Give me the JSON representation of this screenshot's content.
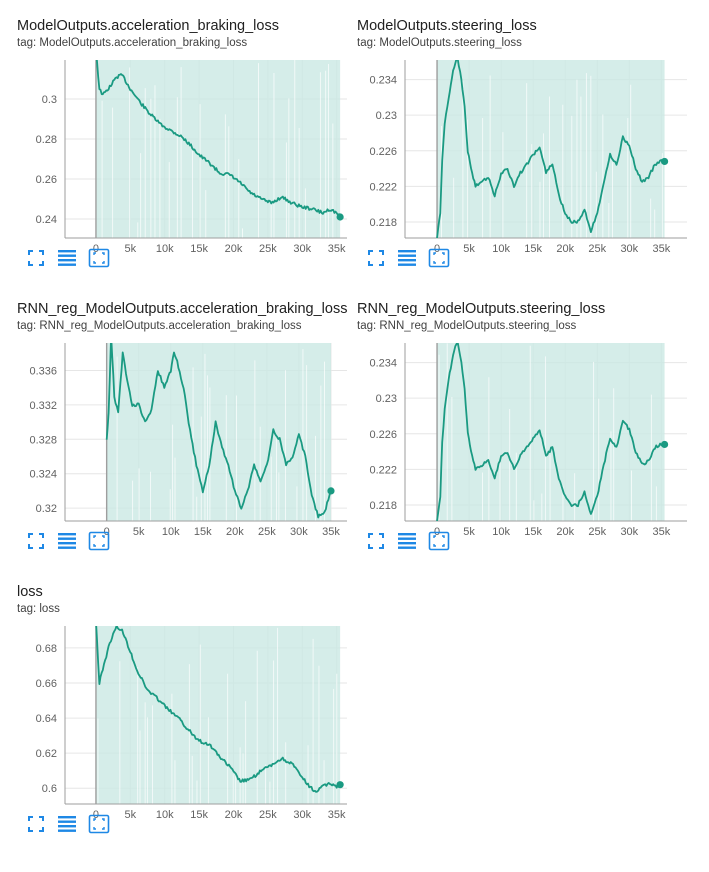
{
  "colors": {
    "line": "#1a9a82",
    "band": "#cbe9e3",
    "grid": "#e6e6e6",
    "axis": "#9e9e9e",
    "icon": "#1e88e5"
  },
  "icons": [
    "fullscreen-icon",
    "data-table-icon",
    "fit-domain-icon"
  ],
  "charts": [
    {
      "title": "ModelOutputs.acceleration_braking_loss",
      "tag": "tag: ModelOutputs.acceleration_braking_loss",
      "chart_data": {
        "type": "line",
        "xlim": [
          -4500,
          36500
        ],
        "ylim": [
          0.2305,
          0.3195
        ],
        "x_ticks": [
          "0",
          "5k",
          "10k",
          "15k",
          "20k",
          "25k",
          "30k",
          "35k"
        ],
        "x_tick_values": [
          0,
          5000,
          10000,
          15000,
          20000,
          25000,
          30000,
          35000
        ],
        "y_ticks": [
          "0.24",
          "0.26",
          "0.28",
          "0.3"
        ],
        "y_tick_values": [
          0.24,
          0.26,
          0.28,
          0.3
        ],
        "grid": true,
        "band": [
          0.225,
          0.32
        ],
        "x": [
          0,
          500,
          1000,
          2000,
          3000,
          3800,
          5000,
          6500,
          8000,
          9500,
          11000,
          12500,
          14000,
          15000,
          16500,
          18000,
          19500,
          21000,
          22500,
          24000,
          25500,
          27000,
          28500,
          30000,
          31500,
          33000,
          34000,
          35000,
          35500
        ],
        "y": [
          0.325,
          0.305,
          0.302,
          0.306,
          0.311,
          0.312,
          0.305,
          0.298,
          0.292,
          0.287,
          0.284,
          0.281,
          0.276,
          0.272,
          0.268,
          0.263,
          0.262,
          0.258,
          0.253,
          0.25,
          0.248,
          0.251,
          0.248,
          0.246,
          0.245,
          0.243,
          0.245,
          0.243,
          0.241
        ]
      }
    },
    {
      "title": "ModelOutputs.steering_loss",
      "tag": "tag: ModelOutputs.steering_loss",
      "chart_data": {
        "type": "line",
        "xlim": [
          -5000,
          39000
        ],
        "ylim": [
          0.2162,
          0.2362
        ],
        "x_ticks": [
          "0",
          "5k",
          "10k",
          "15k",
          "20k",
          "25k",
          "30k",
          "35k"
        ],
        "x_tick_values": [
          0,
          5000,
          10000,
          15000,
          20000,
          25000,
          30000,
          35000
        ],
        "y_ticks": [
          "0.218",
          "0.222",
          "0.226",
          "0.23",
          "0.234"
        ],
        "y_tick_values": [
          0.218,
          0.222,
          0.226,
          0.23,
          0.234
        ],
        "grid": true,
        "band": [
          0.2162,
          0.2362
        ],
        "x": [
          0,
          500,
          800,
          1200,
          1800,
          2500,
          3200,
          3800,
          4300,
          4800,
          5300,
          6000,
          7000,
          8000,
          9000,
          10000,
          11000,
          12000,
          13000,
          14000,
          15000,
          16000,
          17000,
          18000,
          19000,
          20000,
          21000,
          22000,
          23000,
          24000,
          25000,
          26000,
          27000,
          28000,
          29000,
          30000,
          31000,
          32000,
          33000,
          34000,
          35000,
          35500
        ],
        "y": [
          0.2162,
          0.219,
          0.225,
          0.229,
          0.232,
          0.235,
          0.2365,
          0.234,
          0.231,
          0.226,
          0.224,
          0.222,
          0.2225,
          0.223,
          0.221,
          0.2235,
          0.224,
          0.222,
          0.2235,
          0.2245,
          0.2255,
          0.2265,
          0.2235,
          0.2245,
          0.221,
          0.219,
          0.218,
          0.218,
          0.2195,
          0.217,
          0.219,
          0.2225,
          0.2255,
          0.2245,
          0.2275,
          0.2265,
          0.224,
          0.2225,
          0.223,
          0.2245,
          0.2248,
          0.2248
        ]
      }
    },
    {
      "title": "RNN_reg_ModelOutputs.acceleration_braking_loss",
      "tag": "tag: RNN_reg_ModelOutputs.acceleration_braking_loss",
      "chart_data": {
        "type": "line",
        "xlim": [
          -6500,
          37500
        ],
        "ylim": [
          0.3185,
          0.3392
        ],
        "x_ticks": [
          "0",
          "5k",
          "10k",
          "15k",
          "20k",
          "25k",
          "30k",
          "35k"
        ],
        "x_tick_values": [
          0,
          5000,
          10000,
          15000,
          20000,
          25000,
          30000,
          35000
        ],
        "y_ticks": [
          "0.32",
          "0.324",
          "0.328",
          "0.332",
          "0.336"
        ],
        "y_tick_values": [
          0.32,
          0.324,
          0.328,
          0.332,
          0.336
        ],
        "grid": true,
        "band": [
          0.3185,
          0.3392
        ],
        "x": [
          0,
          300,
          700,
          1200,
          1800,
          2500,
          3200,
          4000,
          5000,
          6000,
          7000,
          8000,
          9000,
          10000,
          10500,
          11000,
          12000,
          13000,
          14000,
          15000,
          16000,
          17000,
          18000,
          19000,
          20000,
          21000,
          22000,
          23000,
          24000,
          25000,
          26000,
          27000,
          28000,
          29000,
          30000,
          31000,
          32000,
          33000,
          34000,
          35000
        ],
        "y": [
          0.328,
          0.331,
          0.34,
          0.333,
          0.331,
          0.338,
          0.335,
          0.332,
          0.332,
          0.33,
          0.3315,
          0.336,
          0.334,
          0.336,
          0.338,
          0.337,
          0.334,
          0.329,
          0.325,
          0.322,
          0.325,
          0.33,
          0.327,
          0.325,
          0.322,
          0.32,
          0.322,
          0.325,
          0.323,
          0.325,
          0.329,
          0.328,
          0.325,
          0.326,
          0.3285,
          0.326,
          0.3215,
          0.319,
          0.3195,
          0.322
        ]
      }
    },
    {
      "title": "RNN_reg_ModelOutputs.steering_loss",
      "tag": "tag: RNN_reg_ModelOutputs.steering_loss",
      "chart_data": {
        "type": "line",
        "xlim": [
          -5000,
          39000
        ],
        "ylim": [
          0.2162,
          0.2362
        ],
        "x_ticks": [
          "0",
          "5k",
          "10k",
          "15k",
          "20k",
          "25k",
          "30k",
          "35k"
        ],
        "x_tick_values": [
          0,
          5000,
          10000,
          15000,
          20000,
          25000,
          30000,
          35000
        ],
        "y_ticks": [
          "0.218",
          "0.222",
          "0.226",
          "0.23",
          "0.234"
        ],
        "y_tick_values": [
          0.218,
          0.222,
          0.226,
          0.23,
          0.234
        ],
        "grid": true,
        "band": [
          0.2162,
          0.2362
        ],
        "x": [
          0,
          500,
          800,
          1200,
          1800,
          2500,
          3200,
          3800,
          4300,
          4800,
          5300,
          6000,
          7000,
          8000,
          9000,
          10000,
          11000,
          12000,
          13000,
          14000,
          15000,
          16000,
          17000,
          18000,
          19000,
          20000,
          21000,
          22000,
          23000,
          24000,
          25000,
          26000,
          27000,
          28000,
          29000,
          30000,
          31000,
          32000,
          33000,
          34000,
          35000,
          35500
        ],
        "y": [
          0.2162,
          0.219,
          0.225,
          0.229,
          0.232,
          0.235,
          0.2365,
          0.234,
          0.231,
          0.226,
          0.224,
          0.222,
          0.2225,
          0.223,
          0.221,
          0.2235,
          0.224,
          0.222,
          0.2235,
          0.2245,
          0.2255,
          0.2265,
          0.2235,
          0.2245,
          0.221,
          0.219,
          0.218,
          0.218,
          0.2195,
          0.217,
          0.219,
          0.2225,
          0.2255,
          0.2245,
          0.2275,
          0.2265,
          0.224,
          0.2225,
          0.223,
          0.2245,
          0.2248,
          0.2248
        ]
      }
    },
    {
      "title": "loss",
      "tag": "tag: loss",
      "chart_data": {
        "type": "line",
        "xlim": [
          -4500,
          36500
        ],
        "ylim": [
          0.591,
          0.6925
        ],
        "x_ticks": [
          "0",
          "5k",
          "10k",
          "15k",
          "20k",
          "25k",
          "30k",
          "35k"
        ],
        "x_tick_values": [
          0,
          5000,
          10000,
          15000,
          20000,
          25000,
          30000,
          35000
        ],
        "y_ticks": [
          "0.6",
          "0.62",
          "0.64",
          "0.66",
          "0.68"
        ],
        "y_tick_values": [
          0.6,
          0.62,
          0.64,
          0.66,
          0.68
        ],
        "grid": true,
        "band": [
          0.591,
          0.6925
        ],
        "x": [
          0,
          500,
          1000,
          2000,
          3000,
          3800,
          5000,
          6000,
          7500,
          9000,
          10500,
          12000,
          13500,
          15000,
          16500,
          18000,
          19500,
          21000,
          22500,
          24000,
          25500,
          27000,
          28500,
          30000,
          31000,
          32000,
          33000,
          34000,
          35000,
          35500
        ],
        "y": [
          0.695,
          0.66,
          0.668,
          0.683,
          0.692,
          0.69,
          0.678,
          0.667,
          0.656,
          0.651,
          0.645,
          0.64,
          0.633,
          0.627,
          0.625,
          0.618,
          0.612,
          0.604,
          0.605,
          0.61,
          0.613,
          0.617,
          0.614,
          0.606,
          0.601,
          0.598,
          0.601,
          0.603,
          0.601,
          0.602
        ]
      }
    }
  ]
}
